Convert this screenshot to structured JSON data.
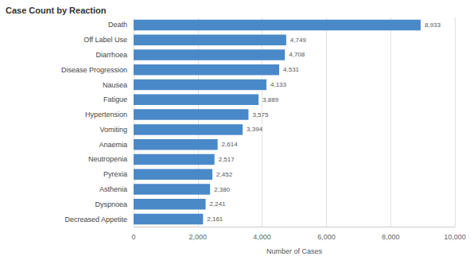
{
  "chart_data": {
    "type": "bar",
    "title": "Case Count by Reaction",
    "orientation": "horizontal",
    "categories": [
      "Death",
      "Off Label Use",
      "Diarrhoea",
      "Disease Progression",
      "Nausea",
      "Fatigue",
      "Hypertension",
      "Vomiting",
      "Anaemia",
      "Neutropenia",
      "Pyrexia",
      "Asthenia",
      "Dyspnoea",
      "Decreased Appetite"
    ],
    "values": [
      8933,
      4749,
      4708,
      4531,
      4133,
      3889,
      3575,
      3394,
      2614,
      2517,
      2452,
      2380,
      2241,
      2161
    ],
    "value_labels": [
      "8,933",
      "4,749",
      "4,708",
      "4,531",
      "4,133",
      "3,889",
      "3,575",
      "3,394",
      "2,614",
      "2,517",
      "2,452",
      "2,380",
      "2,241",
      "2,161"
    ],
    "data_labels": true,
    "color": "#4a89c8",
    "x_label": "Number of Cases",
    "xlim": [
      0,
      10000
    ],
    "xticks": [
      0,
      {
        "value": 2000,
        "label": "2,000"
      },
      {
        "value": 4000,
        "label": "4,000"
      },
      {
        "value": 6000,
        "label": "6,000"
      },
      {
        "value": 8000,
        "label": "8,000"
      },
      {
        "value": 10000,
        "label": "10,000"
      }
    ],
    "grid": true
  }
}
